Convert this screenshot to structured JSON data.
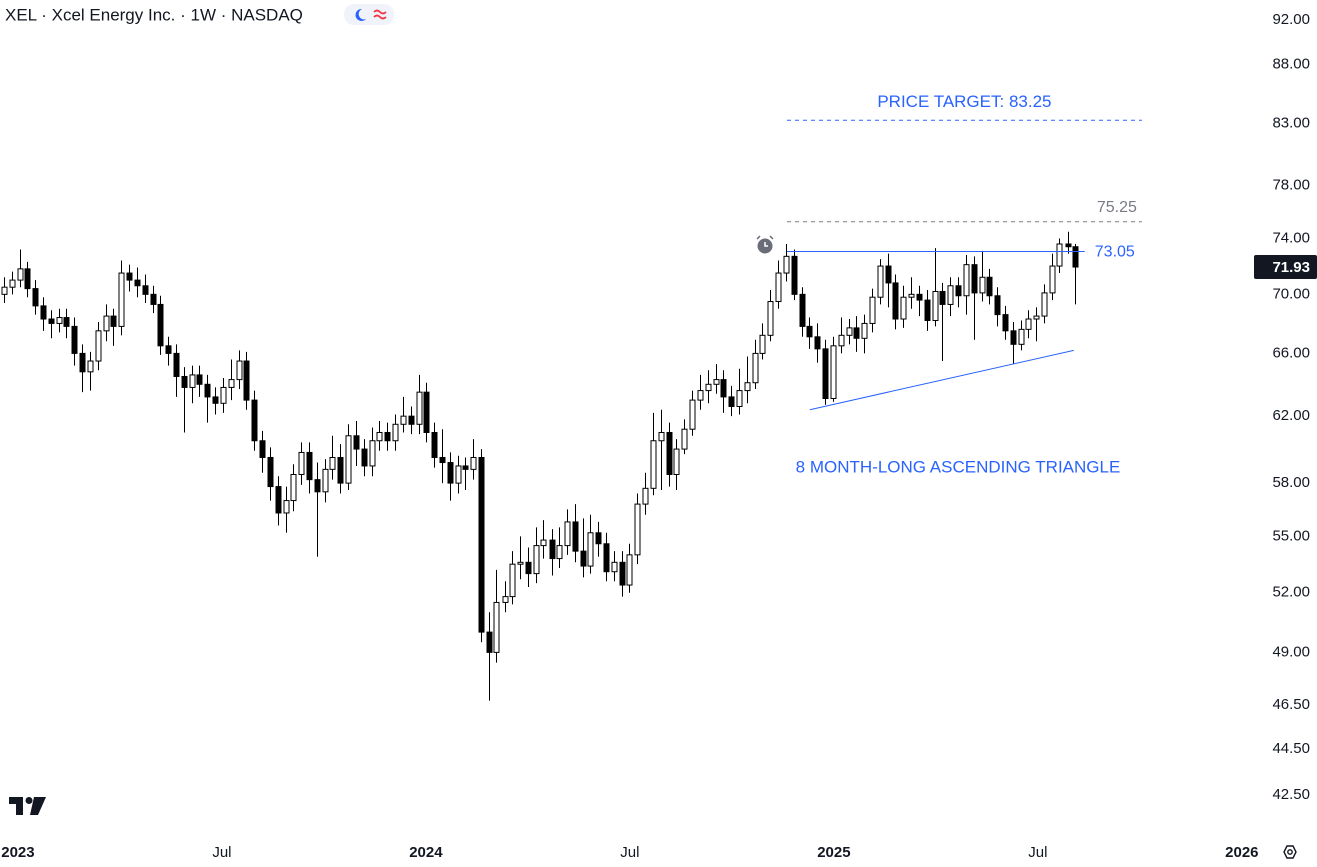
{
  "chart_data": {
    "type": "candlestick",
    "title": "XEL · Xcel Energy Inc. · 1W · NASDAQ",
    "x": [
      2022.966,
      2022.985,
      2023.004,
      2023.023,
      2023.043,
      2023.062,
      2023.081,
      2023.1,
      2023.119,
      2023.138,
      2023.158,
      2023.177,
      2023.196,
      2023.215,
      2023.234,
      2023.253,
      2023.273,
      2023.292,
      2023.311,
      2023.33,
      2023.349,
      2023.368,
      2023.388,
      2023.407,
      2023.426,
      2023.445,
      2023.464,
      2023.483,
      2023.503,
      2023.522,
      2023.541,
      2023.56,
      2023.579,
      2023.598,
      2023.618,
      2023.637,
      2023.656,
      2023.675,
      2023.694,
      2023.713,
      2023.733,
      2023.752,
      2023.771,
      2023.79,
      2023.809,
      2023.828,
      2023.848,
      2023.867,
      2023.886,
      2023.905,
      2023.924,
      2023.943,
      2023.963,
      2023.982,
      2024.001,
      2024.02,
      2024.039,
      2024.058,
      2024.078,
      2024.097,
      2024.116,
      2024.135,
      2024.154,
      2024.173,
      2024.193,
      2024.212,
      2024.231,
      2024.25,
      2024.269,
      2024.288,
      2024.308,
      2024.327,
      2024.346,
      2024.365,
      2024.384,
      2024.403,
      2024.423,
      2024.442,
      2024.461,
      2024.48,
      2024.499,
      2024.518,
      2024.538,
      2024.557,
      2024.576,
      2024.595,
      2024.614,
      2024.633,
      2024.653,
      2024.672,
      2024.691,
      2024.71,
      2024.729,
      2024.748,
      2024.768,
      2024.787,
      2024.806,
      2024.825,
      2024.844,
      2024.863,
      2024.883,
      2024.902,
      2024.921,
      2024.94,
      2024.959,
      2024.978,
      2024.998,
      2025.017,
      2025.036,
      2025.055,
      2025.074,
      2025.093,
      2025.113,
      2025.132,
      2025.151,
      2025.17,
      2025.189,
      2025.208,
      2025.228,
      2025.247,
      2025.266,
      2025.285,
      2025.304,
      2025.323,
      2025.343,
      2025.362,
      2025.381,
      2025.4,
      2025.419,
      2025.438,
      2025.458,
      2025.477,
      2025.496,
      2025.515,
      2025.534,
      2025.553,
      2025.573,
      2025.592
    ],
    "open": [
      70.0,
      70.5,
      71.0,
      71.8,
      70.4,
      69.2,
      68.3,
      68.0,
      68.4,
      67.8,
      66.0,
      64.8,
      65.5,
      67.5,
      68.5,
      67.8,
      71.5,
      71.0,
      70.6,
      70.0,
      69.3,
      66.5,
      66.0,
      64.5,
      63.8,
      64.6,
      64.0,
      63.2,
      62.8,
      63.8,
      64.3,
      65.5,
      63.0,
      60.5,
      59.5,
      57.8,
      56.3,
      57.0,
      58.5,
      59.8,
      58.2,
      57.5,
      58.8,
      59.5,
      58.0,
      60.8,
      60.0,
      59.0,
      60.5,
      61.0,
      60.5,
      61.5,
      62.0,
      61.5,
      63.5,
      61.0,
      59.5,
      59.2,
      58.0,
      59.0,
      58.8,
      59.5,
      50.0,
      49.0,
      51.5,
      51.8,
      53.5,
      53.6,
      53.0,
      54.5,
      54.8,
      53.8,
      54.5,
      55.8,
      54.2,
      53.4,
      55.2,
      54.6,
      53.1,
      53.6,
      52.4,
      54.0,
      56.8,
      57.7,
      60.5,
      61.0,
      58.5,
      60.0,
      61.2,
      63.0,
      63.6,
      64.0,
      64.3,
      63.2,
      62.6,
      63.6,
      64.1,
      66.0,
      67.2,
      69.5,
      71.5,
      72.7,
      70.0,
      67.8,
      67.1,
      66.3,
      63.1,
      66.5,
      67.2,
      67.7,
      67.0,
      68.0,
      69.8,
      72.0,
      70.8,
      68.3,
      69.8,
      70.0,
      69.6,
      68.2,
      70.2,
      69.3,
      70.6,
      69.9,
      72.1,
      70.1,
      71.2,
      69.9,
      68.6,
      67.5,
      66.6,
      67.6,
      68.3,
      68.5,
      70.1,
      72.0,
      73.6,
      73.4
    ],
    "high": [
      71.2,
      71.6,
      73.2,
      72.3,
      71.0,
      69.8,
      68.9,
      69.0,
      69.0,
      68.4,
      66.6,
      66.1,
      68.1,
      69.3,
      69.0,
      72.4,
      72.1,
      71.9,
      71.4,
      70.6,
      69.9,
      67.1,
      66.6,
      65.1,
      65.2,
      65.2,
      64.6,
      63.8,
      64.4,
      65.6,
      66.2,
      66.1,
      63.6,
      61.1,
      60.1,
      58.4,
      57.8,
      59.1,
      60.4,
      60.4,
      59.2,
      59.4,
      60.8,
      60.3,
      61.5,
      61.7,
      60.6,
      61.3,
      61.7,
      61.6,
      62.1,
      63.2,
      62.6,
      64.6,
      64.1,
      61.6,
      61.2,
      59.8,
      59.6,
      59.5,
      60.6,
      60.0,
      51.0,
      53.2,
      52.6,
      54.2,
      55.0,
      54.4,
      55.5,
      55.9,
      55.4,
      55.5,
      56.5,
      56.8,
      56.0,
      56.2,
      55.8,
      55.2,
      54.2,
      54.2,
      54.6,
      57.4,
      58.6,
      62.2,
      62.4,
      61.6,
      60.6,
      61.8,
      63.6,
      64.6,
      64.9,
      65.3,
      64.9,
      63.9,
      65.0,
      65.8,
      66.9,
      68.0,
      70.3,
      72.4,
      73.6,
      73.2,
      70.5,
      68.4,
      68.0,
      66.9,
      67.1,
      68.4,
      68.3,
      68.5,
      68.6,
      70.4,
      72.5,
      72.9,
      71.4,
      70.6,
      71.2,
      70.6,
      70.3,
      73.3,
      70.8,
      71.2,
      71.2,
      72.8,
      72.7,
      73.1,
      71.8,
      70.5,
      69.2,
      68.1,
      68.2,
      68.9,
      69.1,
      70.7,
      72.9,
      74.0,
      74.5,
      73.6
    ],
    "low": [
      69.4,
      70.0,
      70.5,
      69.8,
      68.6,
      67.5,
      67.0,
      67.4,
      67.0,
      65.2,
      63.5,
      63.6,
      64.9,
      66.8,
      66.5,
      67.2,
      70.2,
      69.8,
      69.4,
      68.7,
      65.9,
      65.2,
      63.2,
      61.0,
      62.8,
      63.2,
      61.6,
      62.1,
      62.2,
      63.0,
      63.7,
      62.4,
      59.9,
      58.6,
      57.0,
      55.6,
      55.2,
      56.4,
      57.9,
      57.4,
      53.9,
      56.9,
      58.2,
      57.4,
      57.6,
      59.0,
      58.4,
      58.4,
      59.9,
      59.9,
      59.9,
      61.0,
      60.9,
      60.9,
      60.4,
      58.9,
      58.0,
      57.0,
      57.4,
      57.6,
      58.2,
      49.5,
      46.7,
      48.5,
      51.0,
      51.4,
      52.7,
      52.3,
      52.5,
      53.8,
      52.9,
      53.3,
      54.0,
      53.6,
      52.8,
      53.0,
      53.9,
      52.6,
      52.6,
      51.8,
      52.0,
      53.5,
      56.2,
      57.3,
      57.6,
      57.8,
      57.6,
      59.7,
      60.8,
      62.4,
      62.8,
      63.4,
      62.2,
      62.0,
      62.1,
      62.8,
      63.7,
      65.6,
      66.8,
      69.0,
      70.9,
      69.6,
      67.1,
      66.3,
      65.4,
      62.7,
      62.9,
      66.0,
      66.6,
      66.1,
      66.0,
      67.4,
      69.3,
      69.1,
      67.6,
      67.7,
      69.0,
      68.5,
      67.5,
      67.8,
      65.5,
      68.5,
      69.1,
      68.6,
      66.9,
      69.5,
      69.3,
      67.8,
      66.9,
      65.3,
      66.2,
      67.0,
      66.8,
      68.0,
      69.6,
      71.5,
      72.9,
      69.3
    ],
    "close": [
      70.5,
      71.0,
      71.8,
      70.4,
      69.2,
      68.3,
      68.0,
      68.4,
      67.8,
      66.0,
      64.8,
      65.5,
      67.5,
      68.5,
      67.8,
      71.5,
      71.0,
      70.6,
      70.0,
      69.3,
      66.5,
      66.0,
      64.5,
      63.8,
      64.6,
      64.0,
      63.2,
      62.8,
      63.8,
      64.3,
      65.5,
      63.0,
      60.5,
      59.5,
      57.8,
      56.3,
      57.0,
      58.5,
      59.8,
      58.2,
      57.5,
      58.8,
      59.5,
      58.0,
      60.8,
      60.0,
      59.0,
      60.5,
      61.0,
      60.5,
      61.5,
      62.0,
      61.5,
      63.5,
      61.0,
      59.5,
      59.2,
      58.0,
      59.0,
      58.8,
      59.5,
      50.0,
      49.0,
      51.5,
      51.8,
      53.5,
      53.6,
      53.0,
      54.5,
      54.8,
      53.8,
      54.5,
      55.8,
      54.2,
      53.4,
      55.2,
      54.6,
      53.1,
      53.6,
      52.4,
      54.0,
      56.8,
      57.7,
      60.5,
      61.0,
      58.5,
      60.0,
      61.2,
      63.0,
      63.6,
      64.0,
      64.3,
      63.2,
      62.6,
      63.6,
      64.1,
      66.0,
      67.2,
      69.5,
      71.5,
      72.7,
      70.0,
      67.8,
      67.1,
      66.3,
      63.1,
      66.5,
      67.2,
      67.7,
      67.0,
      68.0,
      69.8,
      72.0,
      70.8,
      68.3,
      69.8,
      70.0,
      69.6,
      68.2,
      70.2,
      69.3,
      70.6,
      69.9,
      72.1,
      70.1,
      71.2,
      69.9,
      68.6,
      67.5,
      66.6,
      67.6,
      68.3,
      68.5,
      70.1,
      72.0,
      73.6,
      73.4,
      71.93
    ],
    "up_color": "#ffffff",
    "down_color": "#000000",
    "wick_color": "#000000",
    "last_price_color": "#131722",
    "log_scale": true,
    "ylim": [
      40.85,
      93.85
    ],
    "yticks": [
      {
        "value": 92,
        "label": "92.00"
      },
      {
        "value": 88,
        "label": "88.00"
      },
      {
        "value": 83,
        "label": "83.00"
      },
      {
        "value": 78,
        "label": "78.00"
      },
      {
        "value": 74,
        "label": "74.00"
      },
      {
        "value": 70,
        "label": "70.00"
      },
      {
        "value": 66,
        "label": "66.00"
      },
      {
        "value": 62,
        "label": "62.00"
      },
      {
        "value": 58,
        "label": "58.00"
      },
      {
        "value": 55,
        "label": "55.00"
      },
      {
        "value": 52,
        "label": "52.00"
      },
      {
        "value": 49,
        "label": "49.00"
      },
      {
        "value": 46.5,
        "label": "46.50"
      },
      {
        "value": 44.5,
        "label": "44.50"
      },
      {
        "value": 42.5,
        "label": "42.50"
      }
    ],
    "xlim": [
      2022.956,
      2026.02
    ],
    "xticks": [
      2023,
      {
        "value": 2023.5,
        "label": "Jul"
      },
      2024,
      {
        "value": 2024.5,
        "label": "Jul"
      },
      2025,
      {
        "value": 2025.5,
        "label": "Jul"
      },
      2026
    ],
    "levels": [
      {
        "value": 73.05,
        "color": "#2962ff",
        "style": "solid",
        "x": [
          2024.885,
          2025.615
        ]
      },
      {
        "value": 75.25,
        "color": "#787b86",
        "style": "dashed",
        "x": [
          2024.885,
          2025.755
        ]
      },
      {
        "value": 83.25,
        "color": "#2962ff",
        "style": "dashed",
        "x": [
          2024.885,
          2025.755
        ],
        "label": "PRICE TARGET: 83.25"
      }
    ],
    "trendline": {
      "x": [
        2024.941,
        2025.588
      ],
      "values": [
        62.4,
        66.2
      ],
      "color": "#2962ff"
    },
    "annotation": "8 MONTH-LONG ASCENDING TRIANGLE"
  }
}
